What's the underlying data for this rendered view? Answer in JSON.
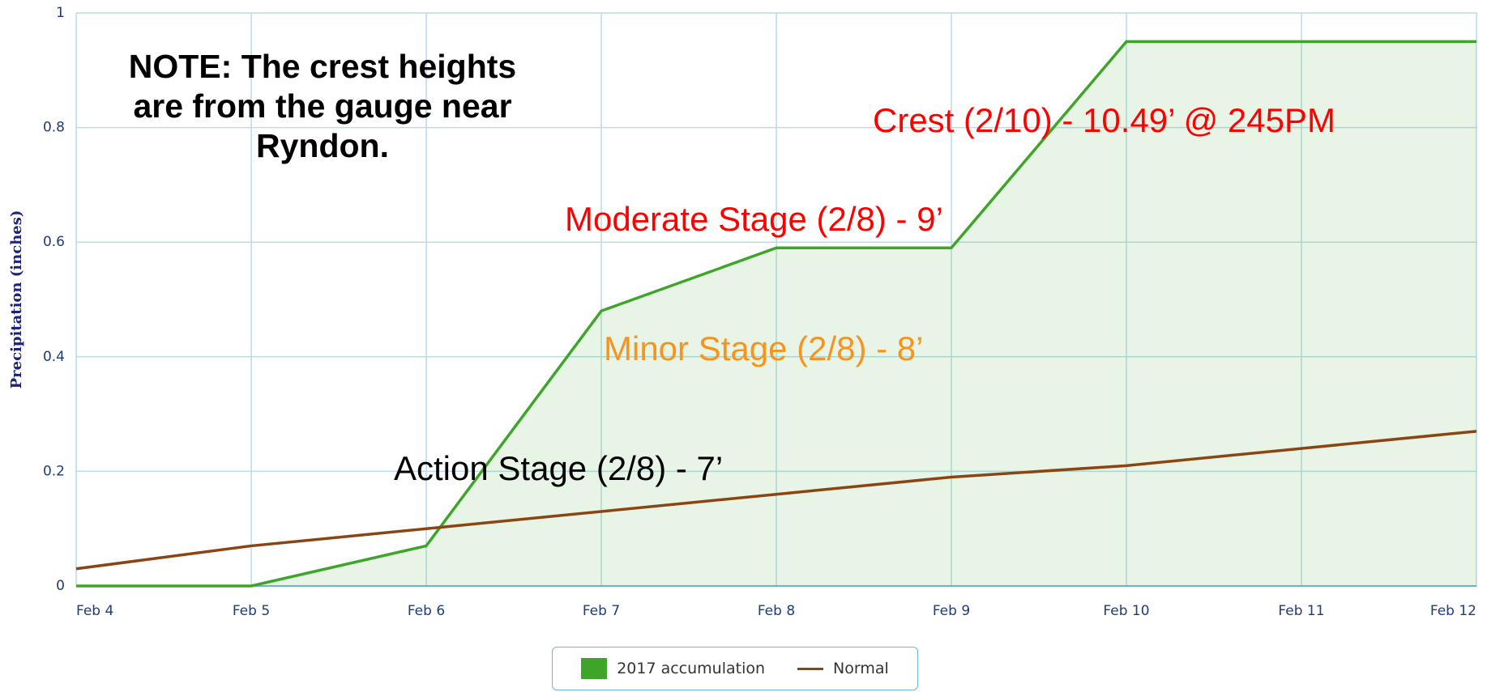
{
  "chart_data": {
    "type": "line",
    "y_label": "Precipitation (inches)",
    "categories": [
      "Feb 4",
      "Feb 5",
      "Feb 6",
      "Feb 7",
      "Feb 8",
      "Feb 9",
      "Feb 10",
      "Feb 11",
      "Feb 12"
    ],
    "series": [
      {
        "name": "2017 accumulation",
        "color": "#3fa52a",
        "fill": true,
        "values": [
          0,
          0,
          0.07,
          0.48,
          0.59,
          0.59,
          0.95,
          0.95,
          0.95
        ]
      },
      {
        "name": "Normal",
        "color": "#8b4513",
        "fill": false,
        "values": [
          0.03,
          0.07,
          0.1,
          0.13,
          0.16,
          0.19,
          0.21,
          0.24,
          0.27
        ]
      }
    ],
    "ylim": [
      0,
      1
    ],
    "yticks": [
      0,
      0.2,
      0.4,
      0.6,
      0.8,
      1
    ],
    "grid": true,
    "legend": "bottom",
    "annotations": [
      {
        "text": "NOTE: The crest heights are from the gauge near Ryndon.",
        "color": "#000000",
        "bold": true
      },
      {
        "text": "Crest (2/10) - 10.49’ @ 245PM",
        "color": "#ff0000",
        "bold": false
      },
      {
        "text": "Moderate Stage (2/8) - 9’",
        "color": "#ff0000",
        "bold": false
      },
      {
        "text": "Minor Stage (2/8) - 8’",
        "color": "#f7941d",
        "bold": false
      },
      {
        "text": "Action Stage (2/8) - 7’",
        "color": "#000000",
        "bold": false
      }
    ]
  }
}
